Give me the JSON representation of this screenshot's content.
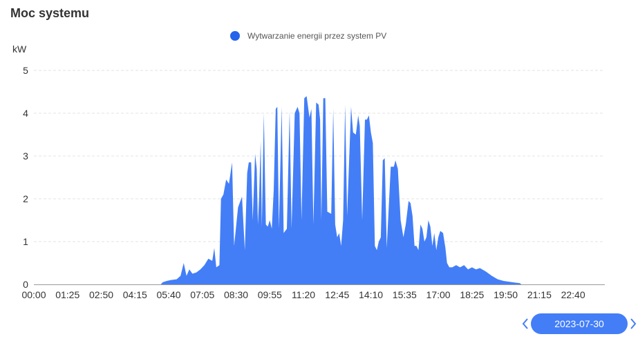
{
  "page": {
    "title": "Moc systemu",
    "unit_label": "kW",
    "legend_label": "Wytwarzanie energii przez system PV",
    "accent_color": "#437ef7",
    "legend_dot_color": "#2563eb"
  },
  "date_nav": {
    "date": "2023-07-30",
    "prev_icon": "chevron-left-icon",
    "next_icon": "chevron-right-icon"
  },
  "chart_data": {
    "type": "area",
    "ylabel": "kW",
    "ylim": [
      0,
      5
    ],
    "yticks": [
      0,
      1,
      2,
      3,
      4,
      5
    ],
    "xlim_hours": [
      0,
      24
    ],
    "xticks": [
      "00:00",
      "01:25",
      "02:50",
      "04:15",
      "05:40",
      "07:05",
      "08:30",
      "09:55",
      "11:20",
      "12:45",
      "14:10",
      "15:35",
      "17:00",
      "18:25",
      "19:50",
      "21:15",
      "22:40"
    ],
    "grid": true,
    "legend": "top-center",
    "series": [
      {
        "name": "Wytwarzanie energii przez system PV",
        "color": "#437ef7",
        "points": [
          [
            "05:20",
            0
          ],
          [
            "05:25",
            0.05
          ],
          [
            "05:35",
            0.08
          ],
          [
            "05:45",
            0.1
          ],
          [
            "06:00",
            0.12
          ],
          [
            "06:10",
            0.2
          ],
          [
            "06:18",
            0.5
          ],
          [
            "06:25",
            0.2
          ],
          [
            "06:32",
            0.35
          ],
          [
            "06:40",
            0.25
          ],
          [
            "06:50",
            0.28
          ],
          [
            "07:00",
            0.35
          ],
          [
            "07:10",
            0.45
          ],
          [
            "07:20",
            0.6
          ],
          [
            "07:30",
            0.55
          ],
          [
            "07:35",
            0.85
          ],
          [
            "07:40",
            0.4
          ],
          [
            "07:48",
            0.45
          ],
          [
            "07:52",
            2.0
          ],
          [
            "07:58",
            2.1
          ],
          [
            "08:05",
            2.45
          ],
          [
            "08:12",
            2.35
          ],
          [
            "08:20",
            2.85
          ],
          [
            "08:25",
            0.9
          ],
          [
            "08:35",
            1.8
          ],
          [
            "08:45",
            2.05
          ],
          [
            "08:52",
            0.8
          ],
          [
            "08:58",
            2.6
          ],
          [
            "09:02",
            2.85
          ],
          [
            "09:08",
            2.85
          ],
          [
            "09:12",
            1.5
          ],
          [
            "09:18",
            3.05
          ],
          [
            "09:22",
            2.7
          ],
          [
            "09:25",
            1.4
          ],
          [
            "09:28",
            2.0
          ],
          [
            "09:32",
            3.35
          ],
          [
            "09:35",
            1.35
          ],
          [
            "09:40",
            4.0
          ],
          [
            "09:45",
            1.4
          ],
          [
            "09:50",
            1.35
          ],
          [
            "09:55",
            1.5
          ],
          [
            "10:00",
            1.3
          ],
          [
            "10:05",
            2.2
          ],
          [
            "10:10",
            4.1
          ],
          [
            "10:14",
            4.15
          ],
          [
            "10:18",
            1.3
          ],
          [
            "10:25",
            4.15
          ],
          [
            "10:30",
            1.2
          ],
          [
            "10:38",
            1.3
          ],
          [
            "10:45",
            4.05
          ],
          [
            "10:50",
            1.3
          ],
          [
            "10:58",
            4.0
          ],
          [
            "11:05",
            4.15
          ],
          [
            "11:10",
            4.0
          ],
          [
            "11:15",
            1.5
          ],
          [
            "11:22",
            4.35
          ],
          [
            "11:28",
            4.4
          ],
          [
            "11:35",
            3.9
          ],
          [
            "11:40",
            4.1
          ],
          [
            "11:45",
            1.4
          ],
          [
            "11:52",
            4.25
          ],
          [
            "11:58",
            4.2
          ],
          [
            "12:02",
            3.85
          ],
          [
            "12:05",
            1.5
          ],
          [
            "12:10",
            4.35
          ],
          [
            "12:15",
            4.35
          ],
          [
            "12:20",
            1.7
          ],
          [
            "12:30",
            1.65
          ],
          [
            "12:35",
            4.1
          ],
          [
            "12:40",
            1.4
          ],
          [
            "12:45",
            1.1
          ],
          [
            "12:50",
            1.2
          ],
          [
            "12:55",
            0.9
          ],
          [
            "13:00",
            1.5
          ],
          [
            "13:05",
            4.2
          ],
          [
            "13:10",
            1.6
          ],
          [
            "13:20",
            4.15
          ],
          [
            "13:25",
            3.55
          ],
          [
            "13:32",
            3.5
          ],
          [
            "13:38",
            3.95
          ],
          [
            "13:42",
            3.7
          ],
          [
            "13:48",
            1.5
          ],
          [
            "13:55",
            3.85
          ],
          [
            "14:00",
            3.85
          ],
          [
            "14:05",
            3.95
          ],
          [
            "14:10",
            3.55
          ],
          [
            "14:15",
            3.3
          ],
          [
            "14:20",
            0.9
          ],
          [
            "14:25",
            0.8
          ],
          [
            "14:30",
            1.0
          ],
          [
            "14:35",
            1.1
          ],
          [
            "14:40",
            2.9
          ],
          [
            "14:45",
            2.95
          ],
          [
            "14:50",
            0.85
          ],
          [
            "15:00",
            2.75
          ],
          [
            "15:08",
            2.75
          ],
          [
            "15:12",
            2.9
          ],
          [
            "15:18",
            2.7
          ],
          [
            "15:25",
            1.5
          ],
          [
            "15:32",
            1.1
          ],
          [
            "15:38",
            1.4
          ],
          [
            "15:45",
            1.95
          ],
          [
            "15:50",
            1.9
          ],
          [
            "15:55",
            1.6
          ],
          [
            "16:00",
            0.9
          ],
          [
            "16:05",
            0.9
          ],
          [
            "16:10",
            0.8
          ],
          [
            "16:15",
            1.4
          ],
          [
            "16:20",
            1.3
          ],
          [
            "16:25",
            1.0
          ],
          [
            "16:30",
            1.1
          ],
          [
            "16:35",
            1.5
          ],
          [
            "16:40",
            1.35
          ],
          [
            "16:45",
            0.9
          ],
          [
            "16:50",
            1.2
          ],
          [
            "16:55",
            0.8
          ],
          [
            "17:00",
            1.1
          ],
          [
            "17:05",
            1.25
          ],
          [
            "17:12",
            1.2
          ],
          [
            "17:18",
            0.85
          ],
          [
            "17:22",
            0.5
          ],
          [
            "17:28",
            0.4
          ],
          [
            "17:35",
            0.4
          ],
          [
            "17:45",
            0.45
          ],
          [
            "17:55",
            0.4
          ],
          [
            "18:05",
            0.45
          ],
          [
            "18:15",
            0.35
          ],
          [
            "18:25",
            0.4
          ],
          [
            "18:35",
            0.35
          ],
          [
            "18:45",
            0.38
          ],
          [
            "19:00",
            0.3
          ],
          [
            "19:15",
            0.2
          ],
          [
            "19:30",
            0.12
          ],
          [
            "19:45",
            0.08
          ],
          [
            "20:00",
            0.06
          ],
          [
            "20:15",
            0.04
          ],
          [
            "20:25",
            0.03
          ],
          [
            "20:30",
            0
          ]
        ]
      }
    ]
  }
}
